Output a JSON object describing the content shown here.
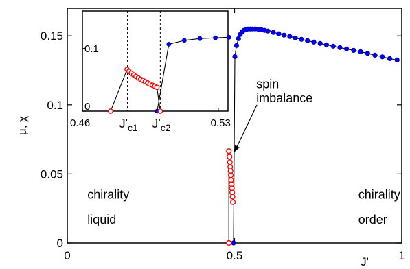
{
  "chart_data": {
    "type": "scatter",
    "title": "",
    "ylabel": "μ, χ",
    "xlabel": "J'",
    "xlim": [
      0,
      1
    ],
    "ylim": [
      0,
      0.17
    ],
    "x_ticks": [
      "0",
      "0.5",
      "1"
    ],
    "y_ticks": [
      "0",
      "0.05",
      "0.1",
      "0.15"
    ],
    "grid": false,
    "colors": {
      "order": "#0000ff",
      "liquid": "#ff0000"
    },
    "series": [
      {
        "marker": "filled-blue",
        "x": [
          0.497,
          0.501,
          0.506,
          0.512,
          0.517,
          0.523,
          0.528,
          0.534,
          0.54,
          0.547,
          0.554,
          0.562,
          0.571,
          0.58,
          0.59,
          0.6,
          0.616,
          0.632,
          0.648,
          0.665,
          0.682,
          0.7,
          0.718,
          0.737,
          0.756,
          0.775,
          0.795,
          0.815,
          0.835,
          0.856,
          0.877,
          0.898,
          0.92,
          0.942,
          0.964,
          0.986
        ],
        "y": [
          0.0,
          0.135,
          0.143,
          0.148,
          0.151,
          0.153,
          0.154,
          0.1545,
          0.155,
          0.155,
          0.155,
          0.155,
          0.1548,
          0.1545,
          0.154,
          0.1535,
          0.1525,
          0.1515,
          0.1505,
          0.1495,
          0.1485,
          0.1475,
          0.1465,
          0.1455,
          0.1445,
          0.1435,
          0.1425,
          0.1415,
          0.1405,
          0.1395,
          0.1385,
          0.1373,
          0.136,
          0.1348,
          0.1335,
          0.1325
        ]
      },
      {
        "marker": "open-red",
        "x": [
          0.483,
          0.483,
          0.485,
          0.486,
          0.487,
          0.488,
          0.489,
          0.49,
          0.491,
          0.492,
          0.493,
          0.494,
          0.495
        ],
        "y": [
          0.0,
          0.0665,
          0.0625,
          0.0585,
          0.055,
          0.052,
          0.049,
          0.0455,
          0.0425,
          0.0395,
          0.0365,
          0.0335,
          0.0295
        ]
      }
    ],
    "annotations": [
      {
        "text": "spin",
        "x": 0.565,
        "y": 0.112
      },
      {
        "text": "imbalance",
        "x": 0.565,
        "y": 0.102
      },
      {
        "text": "chirality",
        "x": 0.06,
        "y": 0.032
      },
      {
        "text": "liquid",
        "x": 0.06,
        "y": 0.014
      },
      {
        "text": "chirality",
        "x": 0.87,
        "y": 0.032
      },
      {
        "text": "order",
        "x": 0.87,
        "y": 0.014
      }
    ],
    "arrow": {
      "from": [
        0.567,
        0.1
      ],
      "to": [
        0.5,
        0.066
      ]
    },
    "inset": {
      "xlim": [
        0.46,
        0.535
      ],
      "ylim": [
        0,
        0.16
      ],
      "x_ticks": [
        "0.46",
        "0.53"
      ],
      "x_tick_values": [
        0.46,
        0.53
      ],
      "y_ticks": [
        "0",
        "0.1"
      ],
      "y_tick_values": [
        0,
        0.1
      ],
      "marks": [
        {
          "label": "J'",
          "sub": "c1",
          "x": 0.4832
        },
        {
          "label": "J'",
          "sub": "c2",
          "x": 0.5001
        }
      ],
      "series": [
        {
          "marker": "filled-blue",
          "x": [
            0.4985,
            0.5045,
            0.5125,
            0.5205,
            0.5285,
            0.5355
          ],
          "y": [
            0.0,
            0.107,
            0.113,
            0.116,
            0.117,
            0.118
          ]
        },
        {
          "marker": "open-red",
          "x": [
            0.4745,
            0.483,
            0.484,
            0.4852,
            0.4864,
            0.4876,
            0.4888,
            0.49,
            0.4912,
            0.4924,
            0.4936,
            0.4948,
            0.496,
            0.4972,
            0.4984,
            0.5001
          ],
          "y": [
            0.0,
            0.0665,
            0.0635,
            0.0605,
            0.058,
            0.0555,
            0.053,
            0.051,
            0.049,
            0.047,
            0.045,
            0.0432,
            0.0415,
            0.0398,
            0.038,
            0.0
          ]
        }
      ]
    }
  }
}
